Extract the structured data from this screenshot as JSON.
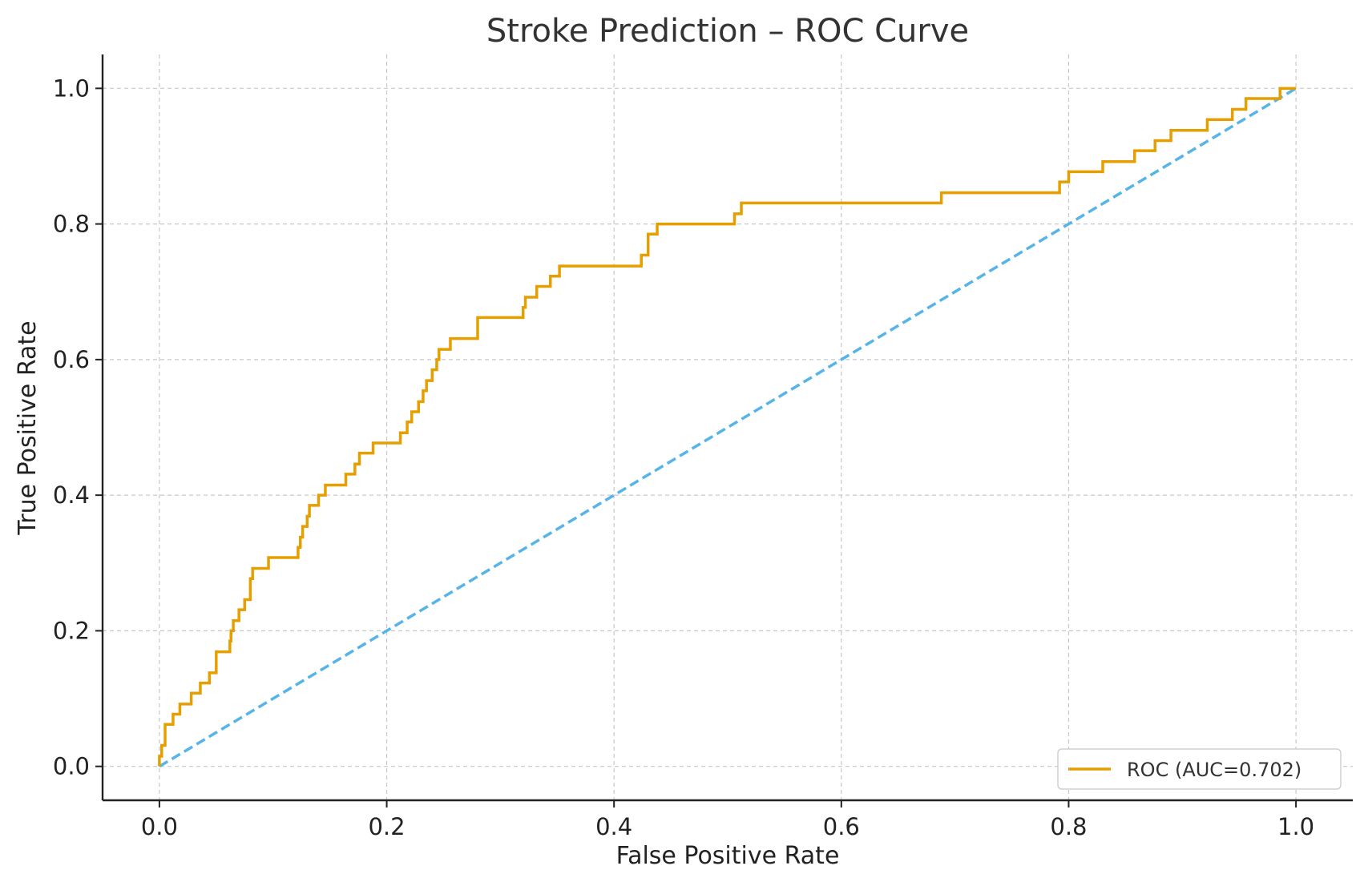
{
  "chart_data": {
    "type": "line",
    "title": "Stroke Prediction – ROC Curve",
    "xlabel": "False Positive Rate",
    "ylabel": "True Positive Rate",
    "xlim": [
      -0.05,
      1.05
    ],
    "ylim": [
      -0.05,
      1.05
    ],
    "xticks": [
      0.0,
      0.2,
      0.4,
      0.6,
      0.8,
      1.0
    ],
    "yticks": [
      0.0,
      0.2,
      0.4,
      0.6,
      0.8,
      1.0
    ],
    "xtick_labels": [
      "0.0",
      "0.2",
      "0.4",
      "0.6",
      "0.8",
      "1.0"
    ],
    "ytick_labels": [
      "0.0",
      "0.2",
      "0.4",
      "0.6",
      "0.8",
      "1.0"
    ],
    "grid": true,
    "legend_position": "lower-right",
    "series": [
      {
        "name": "ROC (AUC=0.702)",
        "color": "#E69F00",
        "style": "solid",
        "x": [
          0.0,
          0.0,
          0.002,
          0.002,
          0.005,
          0.005,
          0.012,
          0.012,
          0.018,
          0.018,
          0.028,
          0.028,
          0.036,
          0.036,
          0.044,
          0.044,
          0.05,
          0.05,
          0.062,
          0.062,
          0.063,
          0.063,
          0.065,
          0.065,
          0.07,
          0.07,
          0.075,
          0.075,
          0.08,
          0.08,
          0.082,
          0.082,
          0.096,
          0.096,
          0.122,
          0.122,
          0.124,
          0.124,
          0.126,
          0.126,
          0.13,
          0.13,
          0.132,
          0.132,
          0.14,
          0.14,
          0.146,
          0.146,
          0.164,
          0.164,
          0.172,
          0.172,
          0.176,
          0.176,
          0.188,
          0.188,
          0.212,
          0.212,
          0.218,
          0.218,
          0.222,
          0.222,
          0.228,
          0.228,
          0.232,
          0.232,
          0.235,
          0.235,
          0.24,
          0.24,
          0.244,
          0.244,
          0.246,
          0.246,
          0.256,
          0.256,
          0.28,
          0.28,
          0.32,
          0.32,
          0.322,
          0.322,
          0.332,
          0.332,
          0.344,
          0.344,
          0.352,
          0.352,
          0.424,
          0.424,
          0.43,
          0.43,
          0.438,
          0.438,
          0.506,
          0.506,
          0.512,
          0.512,
          0.688,
          0.688,
          0.792,
          0.792,
          0.8,
          0.8,
          0.83,
          0.83,
          0.858,
          0.858,
          0.876,
          0.876,
          0.89,
          0.89,
          0.922,
          0.922,
          0.944,
          0.944,
          0.956,
          0.956,
          0.986,
          0.986,
          1.0
        ],
        "y": [
          0.0,
          0.015,
          0.015,
          0.031,
          0.031,
          0.062,
          0.062,
          0.077,
          0.077,
          0.092,
          0.092,
          0.108,
          0.108,
          0.123,
          0.123,
          0.138,
          0.138,
          0.169,
          0.169,
          0.185,
          0.185,
          0.2,
          0.2,
          0.215,
          0.215,
          0.231,
          0.231,
          0.246,
          0.246,
          0.277,
          0.277,
          0.292,
          0.292,
          0.308,
          0.308,
          0.323,
          0.323,
          0.338,
          0.338,
          0.354,
          0.354,
          0.369,
          0.369,
          0.385,
          0.385,
          0.4,
          0.4,
          0.415,
          0.415,
          0.431,
          0.431,
          0.446,
          0.446,
          0.462,
          0.462,
          0.477,
          0.477,
          0.492,
          0.492,
          0.508,
          0.508,
          0.523,
          0.523,
          0.538,
          0.538,
          0.554,
          0.554,
          0.569,
          0.569,
          0.585,
          0.585,
          0.6,
          0.6,
          0.615,
          0.615,
          0.631,
          0.631,
          0.662,
          0.662,
          0.677,
          0.677,
          0.692,
          0.692,
          0.708,
          0.708,
          0.723,
          0.723,
          0.738,
          0.738,
          0.754,
          0.754,
          0.785,
          0.785,
          0.8,
          0.8,
          0.815,
          0.815,
          0.831,
          0.831,
          0.846,
          0.846,
          0.862,
          0.862,
          0.877,
          0.877,
          0.892,
          0.892,
          0.908,
          0.908,
          0.923,
          0.923,
          0.938,
          0.938,
          0.954,
          0.954,
          0.969,
          0.969,
          0.985,
          0.985,
          1.0,
          1.0
        ]
      },
      {
        "name": "",
        "color": "#56B4E9",
        "style": "dashed",
        "x": [
          0.0,
          1.0
        ],
        "y": [
          0.0,
          1.0
        ]
      }
    ]
  }
}
